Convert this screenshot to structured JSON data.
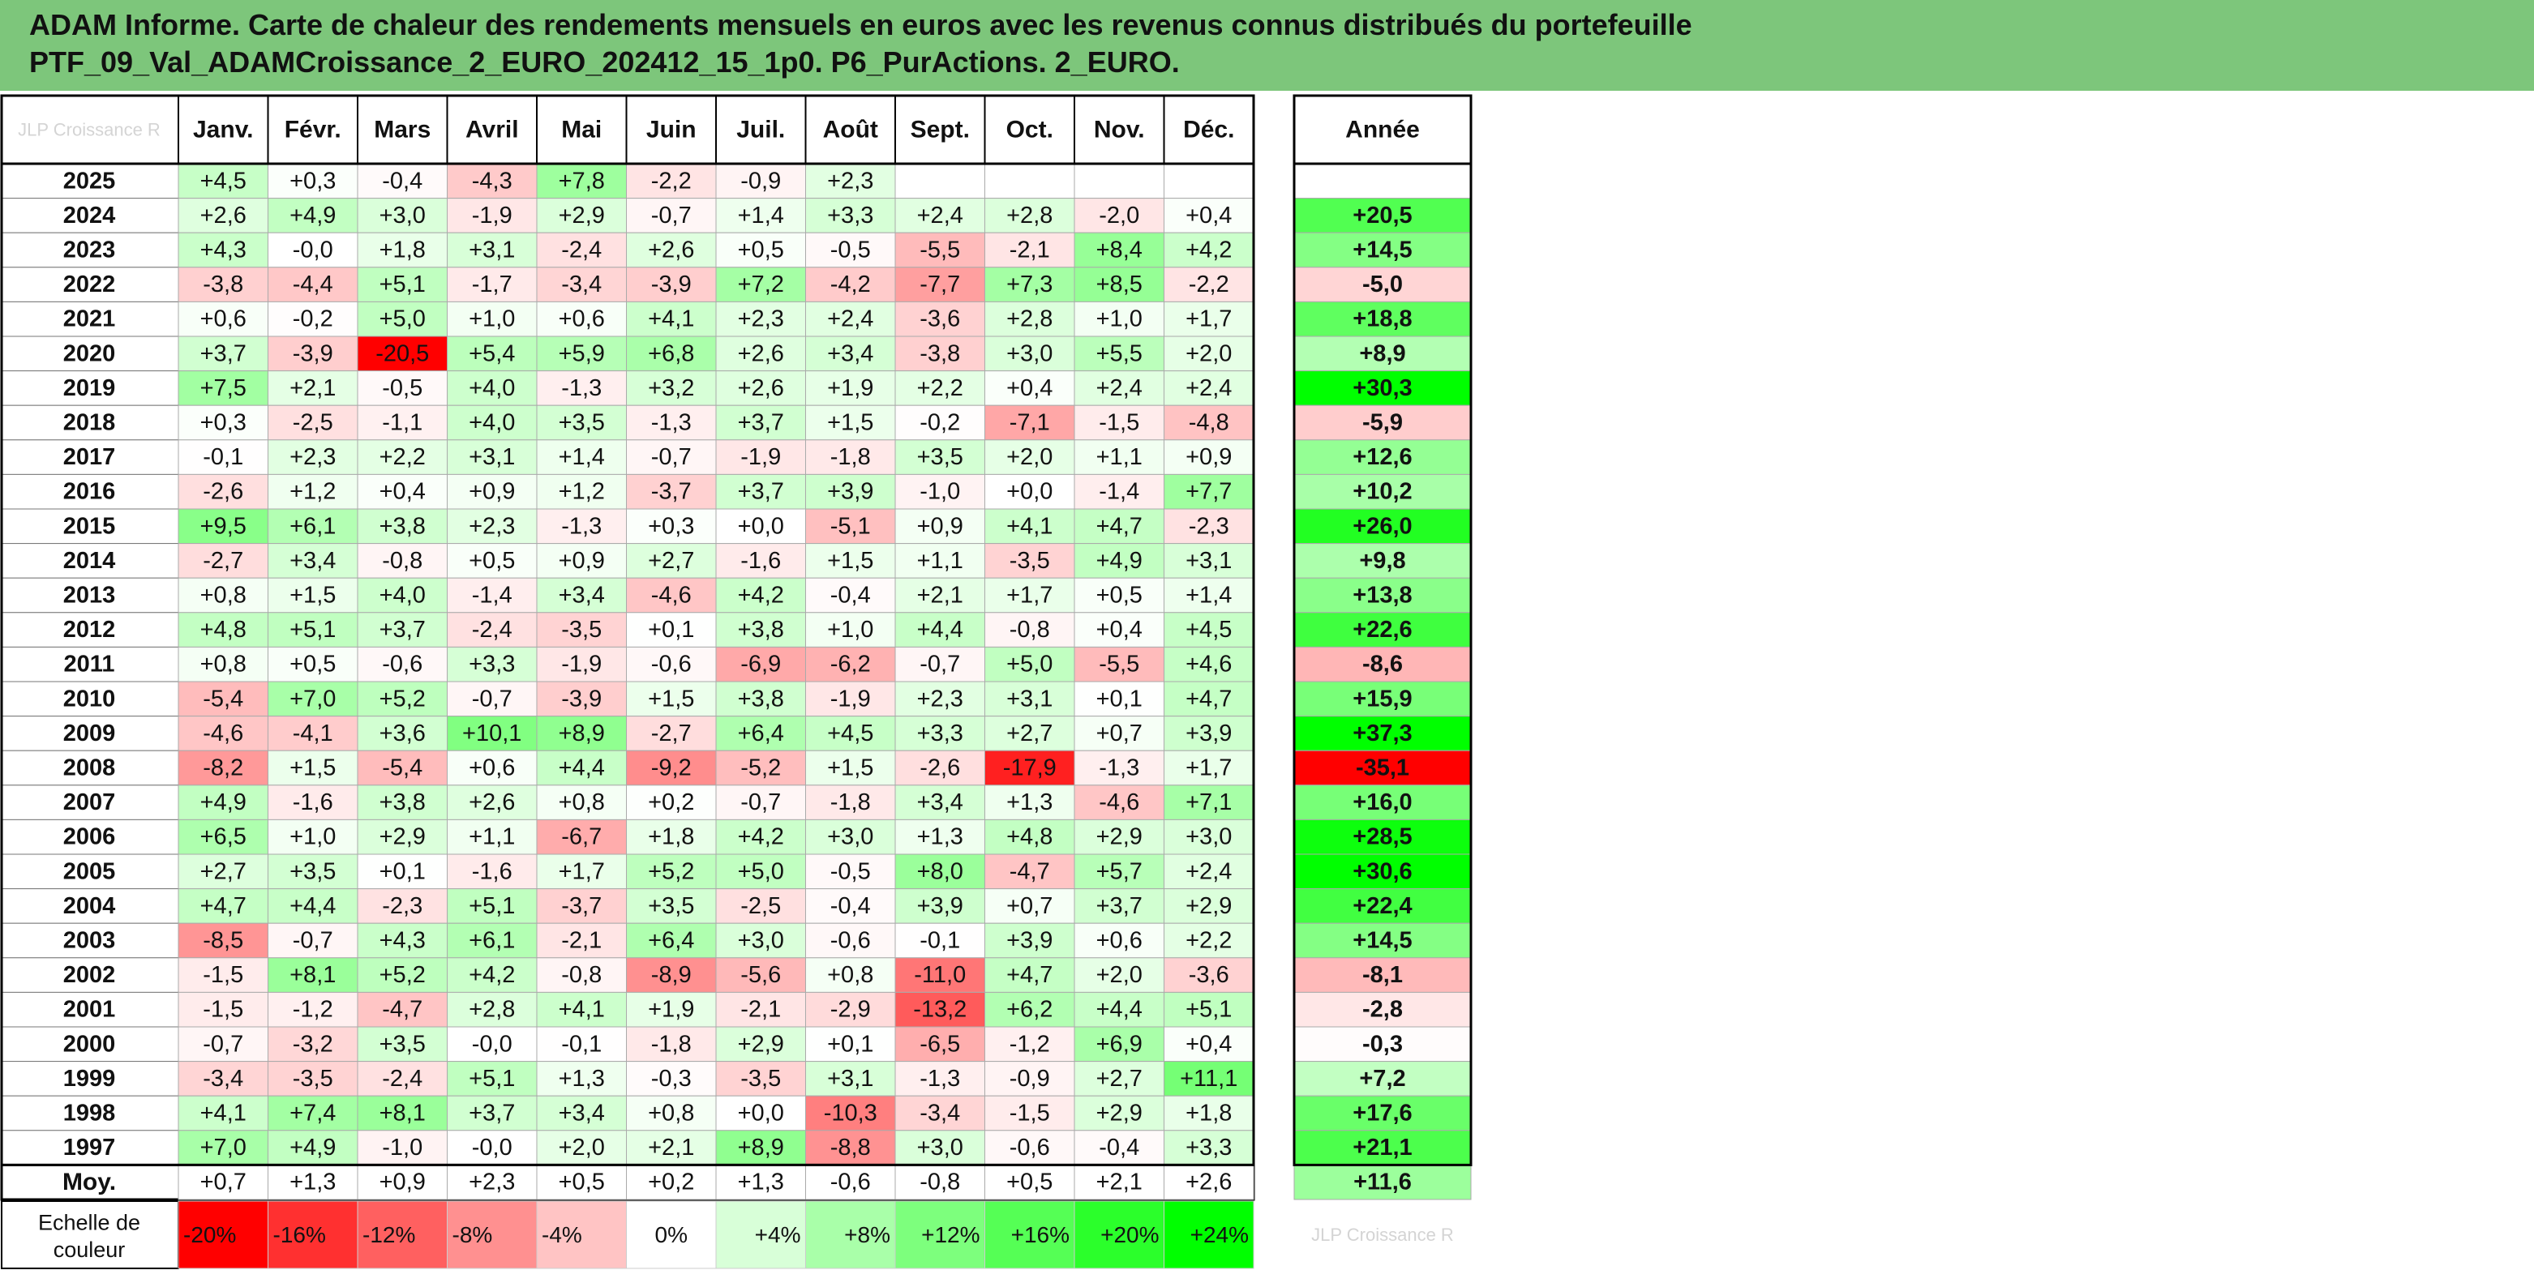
{
  "title": {
    "line1": "ADAM Informe. Carte de chaleur des rendements mensuels en euros avec les revenus connus distribués du portefeuille",
    "line2": "PTF_09_Val_ADAMCroissance_2_EURO_202412_15_1p0. P6_PurActions. 2_EURO."
  },
  "watermark": "JLP Croissance R",
  "scale_watermark": "JLP Croissance R",
  "chart_data": {
    "type": "heatmap",
    "columns": [
      "Janv.",
      "Févr.",
      "Mars",
      "Avril",
      "Mai",
      "Juin",
      "Juil.",
      "Août",
      "Sept.",
      "Oct.",
      "Nov.",
      "Déc."
    ],
    "year_column": "Année",
    "rows": [
      {
        "year": "2025",
        "m": [
          4.5,
          0.3,
          -0.4,
          -4.3,
          7.8,
          -2.2,
          -0.9,
          2.3,
          null,
          null,
          null,
          null
        ],
        "y": null
      },
      {
        "year": "2024",
        "m": [
          2.6,
          4.9,
          3.0,
          -1.9,
          2.9,
          -0.7,
          1.4,
          3.3,
          2.4,
          2.8,
          -2.0,
          0.4
        ],
        "y": 20.5
      },
      {
        "year": "2023",
        "m": [
          4.3,
          -0.0,
          1.8,
          3.1,
          -2.4,
          2.6,
          0.5,
          -0.5,
          -5.5,
          -2.1,
          8.4,
          4.2
        ],
        "y": 14.5
      },
      {
        "year": "2022",
        "m": [
          -3.8,
          -4.4,
          5.1,
          -1.7,
          -3.4,
          -3.9,
          7.2,
          -4.2,
          -7.7,
          7.3,
          8.5,
          -2.2
        ],
        "y": -5.0
      },
      {
        "year": "2021",
        "m": [
          0.6,
          -0.2,
          5.0,
          1.0,
          0.6,
          4.1,
          2.3,
          2.4,
          -3.6,
          2.8,
          1.0,
          1.7
        ],
        "y": 18.8
      },
      {
        "year": "2020",
        "m": [
          3.7,
          -3.9,
          -20.5,
          5.4,
          5.9,
          6.8,
          2.6,
          3.4,
          -3.8,
          3.0,
          5.5,
          2.0
        ],
        "y": 8.9
      },
      {
        "year": "2019",
        "m": [
          7.5,
          2.1,
          -0.5,
          4.0,
          -1.3,
          3.2,
          2.6,
          1.9,
          2.2,
          0.4,
          2.4,
          2.4
        ],
        "y": 30.3
      },
      {
        "year": "2018",
        "m": [
          0.3,
          -2.5,
          -1.1,
          4.0,
          3.5,
          -1.3,
          3.7,
          1.5,
          -0.2,
          -7.1,
          -1.5,
          -4.8
        ],
        "y": -5.9
      },
      {
        "year": "2017",
        "m": [
          -0.1,
          2.3,
          2.2,
          3.1,
          1.4,
          -0.7,
          -1.9,
          -1.8,
          3.5,
          2.0,
          1.1,
          0.9
        ],
        "y": 12.6
      },
      {
        "year": "2016",
        "m": [
          -2.6,
          1.2,
          0.4,
          0.9,
          1.2,
          -3.7,
          3.7,
          3.9,
          -1.0,
          0.0,
          -1.4,
          7.7
        ],
        "y": 10.2
      },
      {
        "year": "2015",
        "m": [
          9.5,
          6.1,
          3.8,
          2.3,
          -1.3,
          0.3,
          0.0,
          -5.1,
          0.9,
          4.1,
          4.7,
          -2.3
        ],
        "y": 26.0
      },
      {
        "year": "2014",
        "m": [
          -2.7,
          3.4,
          -0.8,
          0.5,
          0.9,
          2.7,
          -1.6,
          1.5,
          1.1,
          -3.5,
          4.9,
          3.1
        ],
        "y": 9.8
      },
      {
        "year": "2013",
        "m": [
          0.8,
          1.5,
          4.0,
          -1.4,
          3.4,
          -4.6,
          4.2,
          -0.4,
          2.1,
          1.7,
          0.5,
          1.4
        ],
        "y": 13.8
      },
      {
        "year": "2012",
        "m": [
          4.8,
          5.1,
          3.7,
          -2.4,
          -3.5,
          0.1,
          3.8,
          1.0,
          4.4,
          -0.8,
          0.4,
          4.5
        ],
        "y": 22.6
      },
      {
        "year": "2011",
        "m": [
          0.8,
          0.5,
          -0.6,
          3.3,
          -1.9,
          -0.6,
          -6.9,
          -6.2,
          -0.7,
          5.0,
          -5.5,
          4.6
        ],
        "y": -8.6
      },
      {
        "year": "2010",
        "m": [
          -5.4,
          7.0,
          5.2,
          -0.7,
          -3.9,
          1.5,
          3.8,
          -1.9,
          2.3,
          3.1,
          0.1,
          4.7
        ],
        "y": 15.9
      },
      {
        "year": "2009",
        "m": [
          -4.6,
          -4.1,
          3.6,
          10.1,
          8.9,
          -2.7,
          6.4,
          4.5,
          3.3,
          2.7,
          0.7,
          3.9
        ],
        "y": 37.3
      },
      {
        "year": "2008",
        "m": [
          -8.2,
          1.5,
          -5.4,
          0.6,
          4.4,
          -9.2,
          -5.2,
          1.5,
          -2.6,
          -17.9,
          -1.3,
          1.7
        ],
        "y": -35.1
      },
      {
        "year": "2007",
        "m": [
          4.9,
          -1.6,
          3.8,
          2.6,
          0.8,
          0.2,
          -0.7,
          -1.8,
          3.4,
          1.3,
          -4.6,
          7.1
        ],
        "y": 16.0
      },
      {
        "year": "2006",
        "m": [
          6.5,
          1.0,
          2.9,
          1.1,
          -6.7,
          1.8,
          4.2,
          3.0,
          1.3,
          4.8,
          2.9,
          3.0
        ],
        "y": 28.5
      },
      {
        "year": "2005",
        "m": [
          2.7,
          3.5,
          0.1,
          -1.6,
          1.7,
          5.2,
          5.0,
          -0.5,
          8.0,
          -4.7,
          5.7,
          2.4
        ],
        "y": 30.6
      },
      {
        "year": "2004",
        "m": [
          4.7,
          4.4,
          -2.3,
          5.1,
          -3.7,
          3.5,
          -2.5,
          -0.4,
          3.9,
          0.7,
          3.7,
          2.9
        ],
        "y": 22.4
      },
      {
        "year": "2003",
        "m": [
          -8.5,
          -0.7,
          4.3,
          6.1,
          -2.1,
          6.4,
          3.0,
          -0.6,
          -0.1,
          3.9,
          0.6,
          2.2
        ],
        "y": 14.5
      },
      {
        "year": "2002",
        "m": [
          -1.5,
          8.1,
          5.2,
          4.2,
          -0.8,
          -8.9,
          -5.6,
          0.8,
          -11.0,
          4.7,
          2.0,
          -3.6
        ],
        "y": -8.1
      },
      {
        "year": "2001",
        "m": [
          -1.5,
          -1.2,
          -4.7,
          2.8,
          4.1,
          1.9,
          -2.1,
          -2.9,
          -13.2,
          6.2,
          4.4,
          5.1
        ],
        "y": -2.8
      },
      {
        "year": "2000",
        "m": [
          -0.7,
          -3.2,
          3.5,
          -0.0,
          -0.1,
          -1.8,
          2.9,
          0.1,
          -6.5,
          -1.2,
          6.9,
          0.4
        ],
        "y": -0.3
      },
      {
        "year": "1999",
        "m": [
          -3.4,
          -3.5,
          -2.4,
          5.1,
          1.3,
          -0.3,
          -3.5,
          3.1,
          -1.3,
          -0.9,
          2.7,
          11.1
        ],
        "y": 7.2
      },
      {
        "year": "1998",
        "m": [
          4.1,
          7.4,
          8.1,
          3.7,
          3.4,
          0.8,
          0.0,
          -10.3,
          -3.4,
          -1.5,
          2.9,
          1.8
        ],
        "y": 17.6
      },
      {
        "year": "1997",
        "m": [
          7.0,
          4.9,
          -1.0,
          -0.0,
          2.0,
          2.1,
          8.9,
          -8.8,
          3.0,
          -0.6,
          -0.4,
          3.3
        ],
        "y": 21.1
      }
    ],
    "average": {
      "label": "Moy.",
      "m": [
        0.7,
        1.3,
        0.9,
        2.3,
        0.5,
        0.2,
        1.3,
        -0.6,
        -0.8,
        0.5,
        2.1,
        2.6
      ],
      "y": 11.6
    },
    "scale": {
      "label_line1": "Echelle de",
      "label_line2": "couleur",
      "items": [
        {
          "label": "-20%",
          "color": "#ff0000"
        },
        {
          "label": "-16%",
          "color": "#ff3030"
        },
        {
          "label": "-12%",
          "color": "#ff6060"
        },
        {
          "label": "-8%",
          "color": "#ff9090"
        },
        {
          "label": "-4%",
          "color": "#ffc4c4"
        },
        {
          "label": "0%",
          "color": "#ffffff"
        },
        {
          "label": "+4%",
          "color": "#d8ffd8"
        },
        {
          "label": "+8%",
          "color": "#a9ffa9"
        },
        {
          "label": "+12%",
          "color": "#7dff7d"
        },
        {
          "label": "+16%",
          "color": "#55ff55"
        },
        {
          "label": "+20%",
          "color": "#2bff2b"
        },
        {
          "label": "+24%",
          "color": "#00ff00"
        }
      ]
    },
    "colors": {
      "negative_max": "#ff0000",
      "positive_max": "#00ff00",
      "neutral": "#ffffff"
    }
  }
}
